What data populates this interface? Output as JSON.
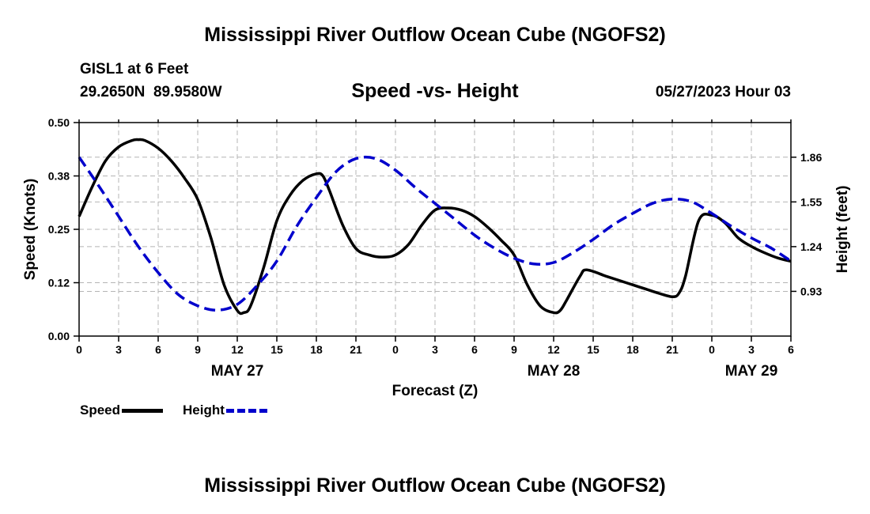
{
  "page": {
    "title_top": "Mississippi River Outflow Ocean Cube (NGOFS2)",
    "title_bottom": "Mississippi River Outflow Ocean Cube (NGOFS2)",
    "station": "GISL1 at 6 Feet",
    "coordinates": "29.2650N  89.9580W",
    "subtitle": "Speed -vs- Height",
    "timestamp": "05/27/2023 Hour 03"
  },
  "colors": {
    "speed": "#000000",
    "height": "#0000cc",
    "grid": "#b4b4b4"
  },
  "chart_data": {
    "type": "line",
    "title": "Speed -vs- Height",
    "xlabel": "Forecast (Z)",
    "ylabel": "Speed (Knots)",
    "ylabel_right": "Height (feet)",
    "x_range": [
      0,
      54
    ],
    "x_ticks": [
      0,
      3,
      6,
      9,
      12,
      15,
      18,
      21,
      24,
      27,
      30,
      33,
      36,
      39,
      42,
      45,
      48,
      51,
      54
    ],
    "x_tick_labels": [
      "0",
      "3",
      "6",
      "9",
      "12",
      "15",
      "18",
      "21",
      "0",
      "3",
      "6",
      "9",
      "12",
      "15",
      "18",
      "21",
      "0",
      "3",
      "6"
    ],
    "day_labels": [
      {
        "x": 12,
        "label": "MAY 27"
      },
      {
        "x": 36,
        "label": "MAY 28"
      },
      {
        "x": 51,
        "label": "MAY 29"
      }
    ],
    "ylim": [
      0,
      0.5
    ],
    "y_ticks": [
      0,
      0.125,
      0.25,
      0.375,
      0.5
    ],
    "y_tick_labels": [
      "0.00",
      "0.12",
      "0.25",
      "0.38",
      "0.50"
    ],
    "ylim_right": [
      0.62,
      2.1
    ],
    "y_ticks_right": [
      0.93,
      1.24,
      1.55,
      1.86
    ],
    "y_tick_labels_right": [
      "0.93",
      "1.24",
      "1.55",
      "1.86"
    ],
    "legend": "bottom-left",
    "grid": true,
    "series": [
      {
        "name": "Speed",
        "axis": "left",
        "style": "solid",
        "x": [
          0,
          1,
          2,
          3,
          4,
          4.5,
          5,
          6,
          7,
          8,
          9,
          10,
          11,
          12,
          12.5,
          13,
          14,
          15,
          16,
          17,
          18,
          18.5,
          19,
          20,
          21,
          22,
          23,
          24,
          25,
          26,
          27,
          28,
          29,
          30,
          31,
          32,
          33,
          34,
          35,
          36,
          36.5,
          37,
          38,
          38.5,
          40,
          41,
          42,
          43,
          44,
          45,
          45.5,
          46,
          47,
          48,
          49,
          50,
          51,
          52,
          53,
          54
        ],
        "values": [
          0.28,
          0.35,
          0.41,
          0.443,
          0.458,
          0.46,
          0.458,
          0.44,
          0.41,
          0.37,
          0.32,
          0.23,
          0.12,
          0.06,
          0.055,
          0.07,
          0.16,
          0.27,
          0.33,
          0.365,
          0.38,
          0.375,
          0.34,
          0.26,
          0.205,
          0.19,
          0.185,
          0.19,
          0.215,
          0.26,
          0.295,
          0.3,
          0.295,
          0.28,
          0.255,
          0.225,
          0.19,
          0.12,
          0.07,
          0.055,
          0.06,
          0.085,
          0.14,
          0.155,
          0.14,
          0.13,
          0.12,
          0.11,
          0.1,
          0.092,
          0.1,
          0.14,
          0.27,
          0.283,
          0.265,
          0.23,
          0.21,
          0.195,
          0.183,
          0.175
        ]
      },
      {
        "name": "Height",
        "axis": "right",
        "style": "dashed",
        "x": [
          0,
          1.5,
          3,
          4.5,
          6,
          7.5,
          9,
          10.5,
          12,
          13.5,
          15,
          16.5,
          18,
          19.5,
          21,
          22.5,
          24,
          25.5,
          27,
          28.5,
          30,
          31.5,
          33,
          34.5,
          36,
          37.5,
          39,
          40.5,
          42,
          43.5,
          45,
          46.5,
          48,
          49.5,
          51,
          52.5,
          54
        ],
        "values": [
          1.86,
          1.66,
          1.45,
          1.24,
          1.06,
          0.91,
          0.83,
          0.8,
          0.84,
          0.97,
          1.14,
          1.38,
          1.58,
          1.76,
          1.85,
          1.85,
          1.77,
          1.65,
          1.54,
          1.43,
          1.32,
          1.23,
          1.16,
          1.12,
          1.13,
          1.2,
          1.29,
          1.39,
          1.47,
          1.54,
          1.57,
          1.55,
          1.47,
          1.38,
          1.3,
          1.23,
          1.14
        ]
      }
    ]
  }
}
